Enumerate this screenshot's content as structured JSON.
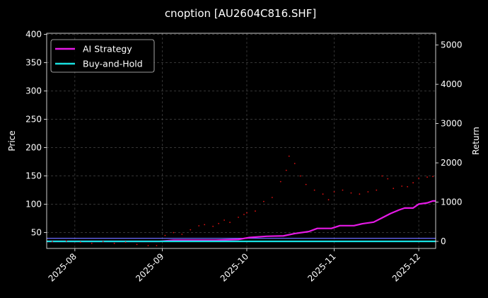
{
  "chart_data": {
    "type": "line",
    "title": "cnoption [AU2604C816.SHF]",
    "xlabel": "",
    "ylabel": "Price",
    "y2label": "Return",
    "x_range": [
      "2025-07-22",
      "2025-12-07"
    ],
    "x_ticks": [
      "2025-08",
      "2025-09",
      "2025-10",
      "2025-11",
      "2025-12"
    ],
    "ylim": [
      22,
      402
    ],
    "y_ticks": [
      50,
      100,
      150,
      200,
      250,
      300,
      350,
      400
    ],
    "y2lim": [
      -180,
      5300
    ],
    "y2_ticks": [
      0,
      1000,
      2000,
      3000,
      4000,
      5000
    ],
    "grid": true,
    "legend": "top-left",
    "colors": {
      "background": "#000000",
      "ai_strategy": "#e619e6",
      "buy_and_hold": "#19e0e0",
      "price": "#dd1111",
      "price_mean": "#6a6aff",
      "grid": "#555555"
    },
    "series": [
      {
        "name": "AI Strategy",
        "axis": "right",
        "points": [
          [
            "2025-07-22",
            0
          ],
          [
            "2025-08-15",
            0
          ],
          [
            "2025-08-31",
            0
          ],
          [
            "2025-09-05",
            30
          ],
          [
            "2025-09-20",
            30
          ],
          [
            "2025-09-28",
            50
          ],
          [
            "2025-10-02",
            100
          ],
          [
            "2025-10-08",
            130
          ],
          [
            "2025-10-14",
            140
          ],
          [
            "2025-10-18",
            200
          ],
          [
            "2025-10-23",
            250
          ],
          [
            "2025-10-26",
            330
          ],
          [
            "2025-10-31",
            330
          ],
          [
            "2025-11-03",
            400
          ],
          [
            "2025-11-08",
            400
          ],
          [
            "2025-11-11",
            450
          ],
          [
            "2025-11-15",
            490
          ],
          [
            "2025-11-18",
            600
          ],
          [
            "2025-11-21",
            710
          ],
          [
            "2025-11-24",
            800
          ],
          [
            "2025-11-26",
            850
          ],
          [
            "2025-11-29",
            850
          ],
          [
            "2025-12-01",
            950
          ],
          [
            "2025-12-04",
            980
          ],
          [
            "2025-12-06",
            1030
          ],
          [
            "2025-12-07",
            1030
          ]
        ]
      },
      {
        "name": "Buy-and-Hold",
        "axis": "right",
        "points": [
          [
            "2025-07-22",
            0
          ],
          [
            "2025-12-07",
            0
          ]
        ]
      },
      {
        "name": "",
        "axis": "left",
        "kind": "scatter",
        "points": [
          [
            "2025-07-24",
            34
          ],
          [
            "2025-07-29",
            35
          ],
          [
            "2025-08-03",
            33
          ],
          [
            "2025-08-07",
            31
          ],
          [
            "2025-08-11",
            34
          ],
          [
            "2025-08-15",
            31
          ],
          [
            "2025-08-19",
            33
          ],
          [
            "2025-08-23",
            29
          ],
          [
            "2025-08-27",
            27
          ],
          [
            "2025-08-30",
            27
          ],
          [
            "2025-09-02",
            45
          ],
          [
            "2025-09-05",
            50
          ],
          [
            "2025-09-08",
            47
          ],
          [
            "2025-09-11",
            55
          ],
          [
            "2025-09-14",
            62
          ],
          [
            "2025-09-16",
            64
          ],
          [
            "2025-09-19",
            61
          ],
          [
            "2025-09-21",
            66
          ],
          [
            "2025-09-23",
            72
          ],
          [
            "2025-09-25",
            68
          ],
          [
            "2025-09-28",
            77
          ],
          [
            "2025-09-30",
            82
          ],
          [
            "2025-10-01",
            85
          ],
          [
            "2025-10-04",
            88
          ],
          [
            "2025-10-07",
            105
          ],
          [
            "2025-10-10",
            112
          ],
          [
            "2025-10-13",
            140
          ],
          [
            "2025-10-15",
            160
          ],
          [
            "2025-10-16",
            185
          ],
          [
            "2025-10-18",
            172
          ],
          [
            "2025-10-20",
            150
          ],
          [
            "2025-10-22",
            135
          ],
          [
            "2025-10-25",
            125
          ],
          [
            "2025-10-28",
            118
          ],
          [
            "2025-10-30",
            108
          ],
          [
            "2025-11-01",
            122
          ],
          [
            "2025-11-04",
            125
          ],
          [
            "2025-11-07",
            120
          ],
          [
            "2025-11-10",
            118
          ],
          [
            "2025-11-13",
            122
          ],
          [
            "2025-11-16",
            125
          ],
          [
            "2025-11-18",
            150
          ],
          [
            "2025-11-20",
            145
          ],
          [
            "2025-11-22",
            128
          ],
          [
            "2025-11-25",
            132
          ],
          [
            "2025-11-27",
            131
          ],
          [
            "2025-11-29",
            138
          ],
          [
            "2025-12-01",
            146
          ],
          [
            "2025-12-04",
            148
          ],
          [
            "2025-12-06",
            149
          ]
        ]
      }
    ],
    "price_reference": {
      "axis": "left",
      "points": [
        [
          "2025-07-22",
          40
        ],
        [
          "2025-12-07",
          40
        ]
      ]
    }
  }
}
